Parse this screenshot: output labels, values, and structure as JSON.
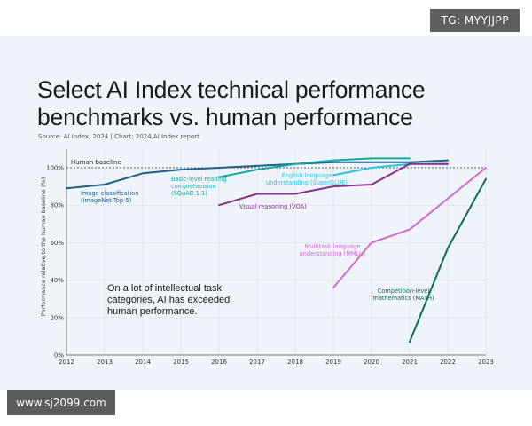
{
  "watermarks": {
    "top": "TG: MYYJJPP",
    "bottom": "www.sj2099.com"
  },
  "title": "Select AI Index technical performance benchmarks vs. human performance",
  "source": "Source: AI Index, 2024 | Chart: 2024 AI Index report",
  "annotation": "On a lot of intellectual task categories, AI has exceeded human performance.",
  "colors": {
    "background": "#eef4f9",
    "baseline": "#555555"
  },
  "chart_data": {
    "type": "line",
    "title": "Select AI Index technical performance benchmarks vs. human performance",
    "ylabel": "Performance relative to the human baseline (%)",
    "xlabel": "",
    "x": [
      2012,
      2013,
      2014,
      2015,
      2016,
      2017,
      2018,
      2019,
      2020,
      2021,
      2022,
      2023
    ],
    "x_ticks": [
      "2012",
      "2013",
      "2014",
      "2015",
      "2016",
      "2017",
      "2018",
      "2019",
      "2020",
      "2021",
      "2022",
      "2023"
    ],
    "ylim": [
      0,
      110
    ],
    "y_ticks": [
      0,
      20,
      40,
      60,
      80,
      100
    ],
    "y_tick_labels": [
      "0%",
      "20%",
      "40%",
      "60%",
      "80%",
      "100%"
    ],
    "baseline": {
      "label": "Human baseline",
      "value": 100
    },
    "grid": true,
    "series": [
      {
        "name": "Image classification (ImageNet Top-5)",
        "color": "#1f5f8b",
        "label_lines": [
          "Image classification",
          "(ImageNet Top-5)"
        ],
        "label_anchor": "start",
        "points": [
          [
            2012,
            89
          ],
          [
            2013,
            91
          ],
          [
            2014,
            97
          ],
          [
            2015,
            99
          ],
          [
            2016,
            100
          ],
          [
            2017,
            101
          ],
          [
            2018,
            102
          ],
          [
            2019,
            103
          ],
          [
            2020,
            103
          ],
          [
            2021,
            103
          ],
          [
            2022,
            104
          ]
        ]
      },
      {
        "name": "Basic-level reading comprehension (SQuAD 1.1)",
        "color": "#19a8a0",
        "label_lines": [
          "Basic-level reading",
          "comprehension",
          "(SQuAD 1.1)"
        ],
        "label_anchor": "start",
        "points": [
          [
            2016,
            95
          ],
          [
            2017,
            99
          ],
          [
            2018,
            102
          ],
          [
            2019,
            104
          ],
          [
            2020,
            105
          ],
          [
            2021,
            105
          ]
        ]
      },
      {
        "name": "English language understanding (SuperGLUE)",
        "color": "#27c3e0",
        "label_lines": [
          "English language",
          "understanding (SuperGLUE)"
        ],
        "label_anchor": "middle",
        "points": [
          [
            2019,
            96
          ],
          [
            2020,
            100
          ],
          [
            2021,
            102
          ],
          [
            2022,
            102
          ]
        ]
      },
      {
        "name": "Visual reasoning (VQA)",
        "color": "#8b2f8b",
        "label_lines": [
          "Visual reasoning (VQA)"
        ],
        "label_anchor": "start",
        "points": [
          [
            2016,
            80
          ],
          [
            2017,
            86
          ],
          [
            2018,
            86
          ],
          [
            2019,
            90
          ],
          [
            2020,
            91
          ],
          [
            2021,
            102
          ],
          [
            2022,
            102
          ]
        ]
      },
      {
        "name": "Multitask language understanding (MMLU)",
        "color": "#d269d2",
        "label_lines": [
          "Multitask language",
          "understanding (MMLU)"
        ],
        "label_anchor": "middle",
        "points": [
          [
            2019,
            36
          ],
          [
            2020,
            60
          ],
          [
            2021,
            67
          ],
          [
            2023,
            100
          ]
        ]
      },
      {
        "name": "Competition-level mathematics (MATH)",
        "color": "#0f6b55",
        "label_lines": [
          "Competition-level",
          "mathematics (MATH)"
        ],
        "label_anchor": "middle",
        "points": [
          [
            2021,
            7
          ],
          [
            2022,
            57
          ],
          [
            2023,
            94
          ]
        ]
      }
    ]
  }
}
